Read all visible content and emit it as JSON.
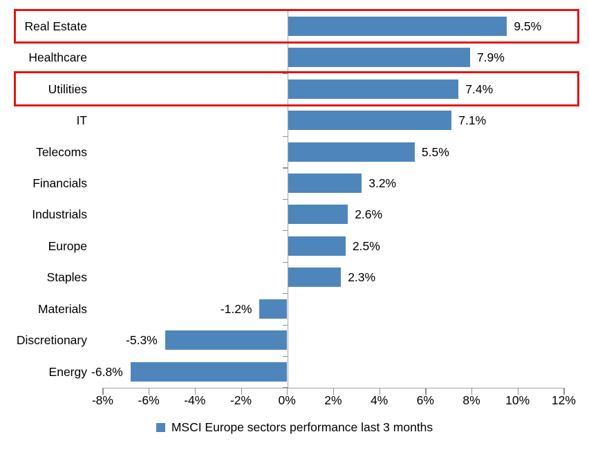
{
  "chart_data": {
    "type": "bar",
    "orientation": "horizontal",
    "title": "",
    "xlabel": "",
    "ylabel": "",
    "grid": false,
    "categories": [
      "Real Estate",
      "Healthcare",
      "Utilities",
      "IT",
      "Telecoms",
      "Financials",
      "Industrials",
      "Europe",
      "Staples",
      "Materials",
      "Discretionary",
      "Energy"
    ],
    "values": [
      9.5,
      7.9,
      7.4,
      7.1,
      5.5,
      3.2,
      2.6,
      2.5,
      2.3,
      -1.2,
      -5.3,
      -6.8
    ],
    "value_labels": [
      "9.5%",
      "7.9%",
      "7.4%",
      "7.1%",
      "5.5%",
      "3.2%",
      "2.6%",
      "2.5%",
      "2.3%",
      "-1.2%",
      "-5.3%",
      "-6.8%"
    ],
    "x_ticks": [
      "-8%",
      "-6%",
      "-4%",
      "-2%",
      "0%",
      "2%",
      "4%",
      "6%",
      "8%",
      "10%",
      "12%"
    ],
    "xlim": [
      -8,
      12
    ],
    "bar_color": "#4E86BC",
    "axis_color": "#A3A3A3",
    "highlight_border_color": "#E91313",
    "highlighted_categories": [
      "Real Estate",
      "Utilities"
    ],
    "legend": {
      "position": "bottom",
      "label": "MSCI Europe sectors performance last 3 months"
    }
  }
}
